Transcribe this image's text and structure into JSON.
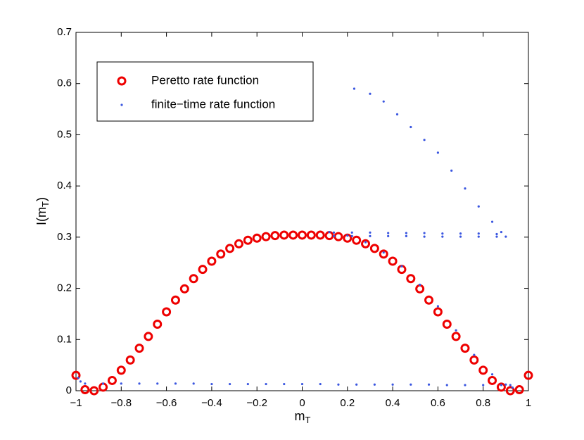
{
  "chart_data": {
    "type": "scatter",
    "xlabel": {
      "base": "m",
      "sub": "T"
    },
    "ylabel": {
      "base": "I(m",
      "sub": "T",
      "end": ")"
    },
    "xlim": [
      -1,
      1
    ],
    "ylim": [
      0,
      0.7
    ],
    "xticks": [
      {
        "value": -1,
        "label": "−1"
      },
      {
        "value": -0.8,
        "label": "−0.8"
      },
      {
        "value": -0.6,
        "label": "−0.6"
      },
      {
        "value": -0.4,
        "label": "−0.4"
      },
      {
        "value": -0.2,
        "label": "−0.2"
      },
      0,
      0.2,
      0.4,
      0.6,
      0.8,
      1
    ],
    "yticks": [
      0,
      0.1,
      0.2,
      0.3,
      0.4,
      0.5,
      0.6,
      0.7
    ],
    "legend": "upper left",
    "series": [
      {
        "name": "Peretto rate function",
        "color": "#ee0000",
        "marker": "circle",
        "x": [
          -1,
          -0.96,
          -0.92,
          -0.88,
          -0.84,
          -0.8,
          -0.76,
          -0.72,
          -0.68,
          -0.64,
          -0.6,
          -0.56,
          -0.52,
          -0.48,
          -0.44,
          -0.4,
          -0.36,
          -0.32,
          -0.28,
          -0.24,
          -0.2,
          -0.16,
          -0.12,
          -0.08,
          -0.04,
          0,
          0.04,
          0.08,
          0.12,
          0.16,
          0.2,
          0.24,
          0.28,
          0.32,
          0.36,
          0.4,
          0.44,
          0.48,
          0.52,
          0.56,
          0.6,
          0.64,
          0.68,
          0.72,
          0.76,
          0.8,
          0.84,
          0.88,
          0.92,
          0.96,
          1
        ],
        "values": [
          0.03,
          0.002,
          0,
          0.007,
          0.02,
          0.04,
          0.06,
          0.083,
          0.106,
          0.13,
          0.154,
          0.177,
          0.199,
          0.219,
          0.237,
          0.253,
          0.267,
          0.278,
          0.287,
          0.294,
          0.298,
          0.301,
          0.303,
          0.304,
          0.304,
          0.304,
          0.304,
          0.304,
          0.303,
          0.301,
          0.298,
          0.294,
          0.287,
          0.278,
          0.267,
          0.253,
          0.237,
          0.219,
          0.199,
          0.177,
          0.154,
          0.13,
          0.106,
          0.083,
          0.06,
          0.04,
          0.02,
          0.007,
          0,
          0.002,
          0.03
        ]
      },
      {
        "name": "finite−time rate function",
        "color": "#3a56e0",
        "marker": "dot",
        "x": [
          -0.99,
          -0.98,
          -0.96,
          -0.88,
          -0.8,
          -0.72,
          -0.64,
          -0.56,
          -0.48,
          -0.4,
          -0.32,
          -0.24,
          -0.16,
          -0.08,
          0,
          0.08,
          0.16,
          0.24,
          0.32,
          0.4,
          0.48,
          0.56,
          0.64,
          0.72,
          0.8,
          0.88,
          0.92,
          0.12,
          0.2,
          0.28,
          0.36,
          0.44,
          0.52,
          0.6,
          0.68,
          0.76,
          0.84,
          0.9,
          0.93,
          0.14,
          0.22,
          0.3,
          0.38,
          0.46,
          0.54,
          0.62,
          0.7,
          0.78,
          0.86,
          0.14,
          0.22,
          0.3,
          0.38,
          0.46,
          0.54,
          0.62,
          0.7,
          0.78,
          0.86,
          0.9,
          0.23,
          0.3,
          0.36,
          0.42,
          0.48,
          0.54,
          0.6,
          0.66,
          0.72,
          0.78,
          0.84,
          0.88
        ],
        "values": [
          0.025,
          0.018,
          0.014,
          0.014,
          0.014,
          0.014,
          0.014,
          0.014,
          0.014,
          0.013,
          0.013,
          0.013,
          0.013,
          0.013,
          0.013,
          0.013,
          0.012,
          0.012,
          0.012,
          0.012,
          0.012,
          0.012,
          0.011,
          0.011,
          0.011,
          0.011,
          0.011,
          0.31,
          0.303,
          0.29,
          0.27,
          0.243,
          0.207,
          0.165,
          0.118,
          0.07,
          0.032,
          0.012,
          0.006,
          0.309,
          0.309,
          0.309,
          0.308,
          0.308,
          0.308,
          0.307,
          0.307,
          0.307,
          0.306,
          0.302,
          0.302,
          0.302,
          0.302,
          0.302,
          0.301,
          0.301,
          0.301,
          0.301,
          0.301,
          0.301,
          0.59,
          0.58,
          0.565,
          0.54,
          0.515,
          0.49,
          0.465,
          0.43,
          0.395,
          0.36,
          0.33,
          0.31
        ]
      }
    ]
  }
}
